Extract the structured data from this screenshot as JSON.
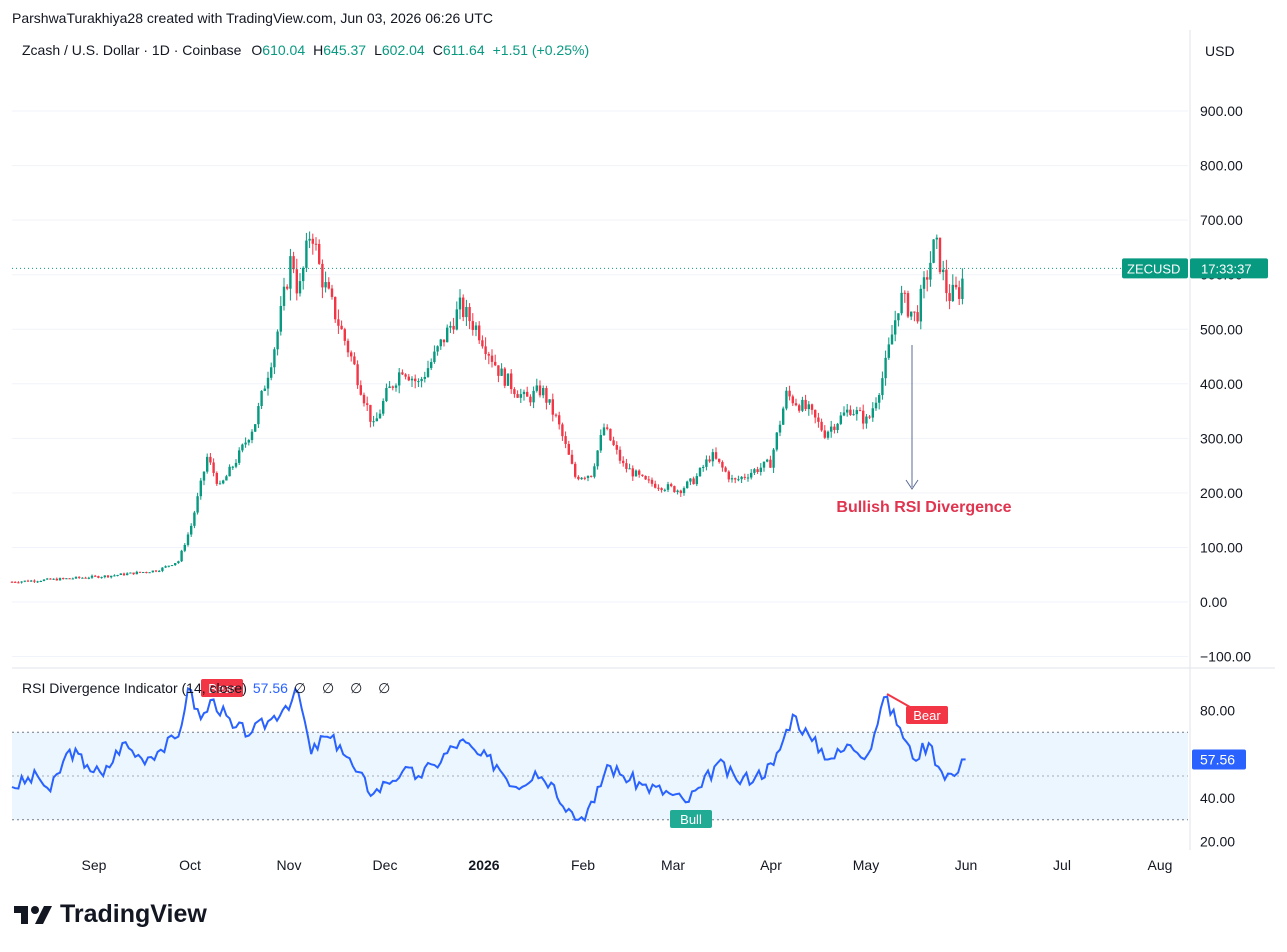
{
  "header": {
    "credit": "ParshwaTurakhiya28 created with TradingView.com, Jun 03, 2026 06:26 UTC"
  },
  "legend": {
    "symbol": "Zcash / U.S. Dollar · 1D · Coinbase",
    "open_label": "O",
    "open": "610.04",
    "high_label": "H",
    "high": "645.37",
    "low_label": "L",
    "low": "602.04",
    "close_label": "C",
    "close": "611.64",
    "change": "+1.51 (+0.25%)"
  },
  "price_axis": {
    "currency": "USD",
    "ticks": [
      "900.00",
      "800.00",
      "700.00",
      "600.00",
      "500.00",
      "400.00",
      "300.00",
      "200.00",
      "100.00",
      "0.00",
      "−100.00"
    ]
  },
  "price_tag": {
    "symbol": "ZECUSD",
    "countdown": "17:33:37"
  },
  "annotation": {
    "text": "Bullish RSI Divergence"
  },
  "rsi": {
    "title": "RSI Divergence Indicator (14, close)",
    "value": "57.56",
    "dots": "∅ ∅ ∅ ∅",
    "ticks": [
      "80.00",
      "40.00",
      "20.00"
    ],
    "bear_labels": [
      "Bear",
      "Bear"
    ],
    "bull_label": "Bull"
  },
  "time_axis": {
    "labels": [
      "Sep",
      "Oct",
      "Nov",
      "Dec",
      "2026",
      "Feb",
      "Mar",
      "Apr",
      "May",
      "Jun",
      "Jul",
      "Aug"
    ]
  },
  "brand": {
    "name": "TradingView"
  },
  "colors": {
    "up": "#089981",
    "down": "#f23645",
    "rsi_line": "#2962ff",
    "band": "#e3f2fd",
    "annotation": "#e0344f"
  },
  "chart_data": [
    {
      "type": "candlestick",
      "title": "Zcash / U.S. Dollar · 1D · Coinbase",
      "ylabel": "USD",
      "ylim": [
        -100,
        1000
      ],
      "x_labels": [
        "Sep",
        "Oct",
        "Nov",
        "Dec",
        "2026",
        "Feb",
        "Mar",
        "Apr",
        "May",
        "Jun",
        "Jul",
        "Aug"
      ],
      "approx_close_path": [
        [
          "Aug 10",
          37
        ],
        [
          "Aug 25",
          42
        ],
        [
          "Sep 10",
          48
        ],
        [
          "Sep 25",
          58
        ],
        [
          "Oct 1",
          75
        ],
        [
          "Oct 5",
          140
        ],
        [
          "Oct 10",
          265
        ],
        [
          "Oct 14",
          210
        ],
        [
          "Oct 20",
          270
        ],
        [
          "Oct 25",
          330
        ],
        [
          "Nov 1",
          480
        ],
        [
          "Nov 6",
          640
        ],
        [
          "Nov 8",
          560
        ],
        [
          "Nov 12",
          690
        ],
        [
          "Nov 15",
          600
        ],
        [
          "Nov 20",
          520
        ],
        [
          "Nov 25",
          440
        ],
        [
          "Dec 1",
          320
        ],
        [
          "Dec 5",
          380
        ],
        [
          "Dec 10",
          430
        ],
        [
          "Dec 15",
          400
        ],
        [
          "Dec 20",
          450
        ],
        [
          "Dec 28",
          540
        ],
        [
          "Jan 3",
          500
        ],
        [
          "Jan 10",
          420
        ],
        [
          "Jan 18",
          370
        ],
        [
          "Jan 23",
          390
        ],
        [
          "Jan 28",
          330
        ],
        [
          "Feb 3",
          230
        ],
        [
          "Feb 8",
          235
        ],
        [
          "Feb 12",
          320
        ],
        [
          "Feb 18",
          250
        ],
        [
          "Feb 25",
          220
        ],
        [
          "Mar 5",
          205
        ],
        [
          "Mar 10",
          225
        ],
        [
          "Mar 15",
          270
        ],
        [
          "Mar 22",
          220
        ],
        [
          "Mar 28",
          240
        ],
        [
          "Apr 3",
          255
        ],
        [
          "Apr 8",
          380
        ],
        [
          "Apr 15",
          350
        ],
        [
          "Apr 20",
          310
        ],
        [
          "Apr 28",
          355
        ],
        [
          "May 3",
          330
        ],
        [
          "May 8",
          420
        ],
        [
          "May 13",
          560
        ],
        [
          "May 18",
          520
        ],
        [
          "May 24",
          660
        ],
        [
          "May 28",
          560
        ],
        [
          "Jun 1",
          570
        ],
        [
          "Jun 3",
          611.64
        ]
      ],
      "last": {
        "open": 610.04,
        "high": 645.37,
        "low": 602.04,
        "close": 611.64
      }
    },
    {
      "type": "line",
      "title": "RSI Divergence Indicator (14, close)",
      "ylim": [
        20,
        100
      ],
      "band": [
        30,
        70
      ],
      "last_value": 57.56,
      "approx_path": [
        [
          "Aug 10",
          45
        ],
        [
          "Aug 18",
          50
        ],
        [
          "Aug 22",
          43
        ],
        [
          "Aug 28",
          62
        ],
        [
          "Sep 3",
          55
        ],
        [
          "Sep 8",
          50
        ],
        [
          "Sep 14",
          65
        ],
        [
          "Sep 20",
          58
        ],
        [
          "Sep 26",
          62
        ],
        [
          "Oct 1",
          68
        ],
        [
          "Oct 4",
          90
        ],
        [
          "Oct 8",
          76
        ],
        [
          "Oct 12",
          85
        ],
        [
          "Oct 18",
          72
        ],
        [
          "Oct 24",
          70
        ],
        [
          "Oct 30",
          76
        ],
        [
          "Nov 4",
          82
        ],
        [
          "Nov 8",
          88
        ],
        [
          "Nov 12",
          60
        ],
        [
          "Nov 16",
          68
        ],
        [
          "Nov 21",
          64
        ],
        [
          "Nov 26",
          52
        ],
        [
          "Dec 1",
          42
        ],
        [
          "Dec 5",
          47
        ],
        [
          "Dec 10",
          52
        ],
        [
          "Dec 15",
          50
        ],
        [
          "Dec 20",
          55
        ],
        [
          "Dec 28",
          66
        ],
        [
          "Jan 3",
          60
        ],
        [
          "Jan 9",
          55
        ],
        [
          "Jan 15",
          45
        ],
        [
          "Jan 21",
          52
        ],
        [
          "Jan 26",
          47
        ],
        [
          "Feb 1",
          35
        ],
        [
          "Feb 4",
          30
        ],
        [
          "Feb 9",
          38
        ],
        [
          "Feb 13",
          55
        ],
        [
          "Feb 18",
          50
        ],
        [
          "Feb 24",
          46
        ],
        [
          "Mar 2",
          42
        ],
        [
          "Mar 7",
          38
        ],
        [
          "Mar 12",
          45
        ],
        [
          "Mar 17",
          56
        ],
        [
          "Mar 23",
          48
        ],
        [
          "Mar 29",
          50
        ],
        [
          "Apr 4",
          55
        ],
        [
          "Apr 10",
          78
        ],
        [
          "Apr 16",
          66
        ],
        [
          "Apr 22",
          58
        ],
        [
          "Apr 28",
          64
        ],
        [
          "May 3",
          60
        ],
        [
          "May 8",
          86
        ],
        [
          "May 13",
          72
        ],
        [
          "May 17",
          58
        ],
        [
          "May 22",
          65
        ],
        [
          "May 26",
          52
        ],
        [
          "May 30",
          50
        ],
        [
          "Jun 3",
          57.56
        ]
      ],
      "divergence_labels": [
        {
          "text": "Bear",
          "at": "Oct 10"
        },
        {
          "text": "Bull",
          "at": "Mar 12"
        },
        {
          "text": "Bear",
          "at": "May 15"
        }
      ]
    }
  ]
}
